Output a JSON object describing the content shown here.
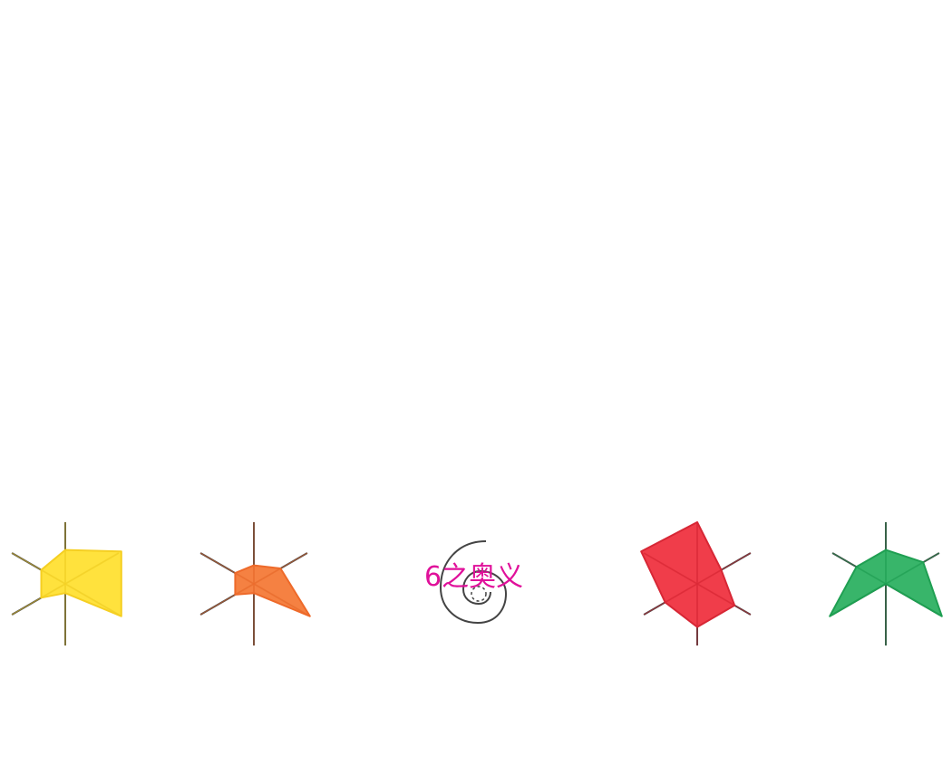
{
  "logo": {
    "text": "6之奥义",
    "color": "#e0109a"
  },
  "glyphs": [
    {
      "name": "yellow-radar-icon",
      "fill": "#ffe033",
      "stroke": "#f5cf22",
      "values": [
        0.55,
        1.05,
        1.05,
        0.15,
        0.45,
        0.45
      ]
    },
    {
      "name": "orange-radar-icon",
      "fill": "#f47a38",
      "stroke": "#ee6a2a",
      "values": [
        0.3,
        0.5,
        1.05,
        0.15,
        0.35,
        0.35
      ]
    },
    {
      "name": "red-radar-icon",
      "fill": "#ef3340",
      "stroke": "#d72735",
      "values": [
        1.0,
        0.45,
        0.7,
        0.7,
        0.6,
        1.05
      ]
    },
    {
      "name": "green-radar-icon",
      "fill": "#2db162",
      "stroke": "#1f9f52",
      "values": [
        0.55,
        0.7,
        1.05,
        0.0,
        1.05,
        0.55
      ]
    }
  ]
}
